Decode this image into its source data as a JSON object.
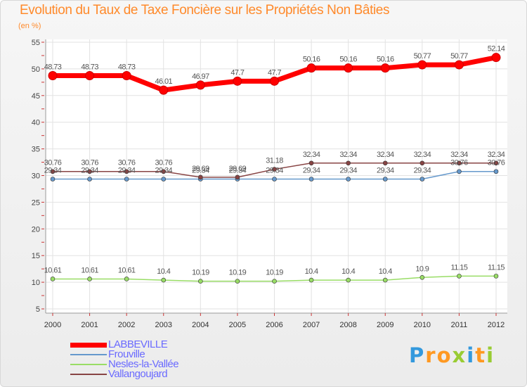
{
  "chart_data": {
    "type": "line",
    "title": "Evolution du Taux de Taxe Foncière sur les Propriétés Non Bâties",
    "subtitle": "(en %)",
    "xlabel": "",
    "ylabel": "(en %)",
    "ylim": [
      5,
      55
    ],
    "yticks": [
      "5",
      "10",
      "15",
      "20",
      "25",
      "30",
      "35",
      "40",
      "45",
      "50",
      "55"
    ],
    "categories": [
      "2000",
      "2001",
      "2002",
      "2003",
      "2004",
      "2005",
      "2006",
      "2007",
      "2008",
      "2009",
      "2010",
      "2011",
      "2012"
    ],
    "series": [
      {
        "name": "LABBEVILLE",
        "color": "#ff0000",
        "values": [
          48.73,
          48.73,
          48.73,
          46.01,
          46.97,
          47.7,
          47.7,
          50.16,
          50.16,
          50.16,
          50.77,
          50.77,
          52.14
        ],
        "labels": [
          "48.73",
          "48.73",
          "48.73",
          "46.01",
          "46.97",
          "47.7",
          "47.7",
          "50.16",
          "50.16",
          "50.16",
          "50.77",
          "50.77",
          "52.14"
        ]
      },
      {
        "name": "Frouville",
        "color": "#6699cc",
        "values": [
          29.34,
          29.34,
          29.34,
          29.34,
          29.34,
          29.34,
          29.34,
          29.34,
          29.34,
          29.34,
          29.34,
          30.76,
          30.76
        ],
        "labels": [
          "29.34",
          "29.34",
          "29.34",
          "29.34",
          "29.34",
          "29.34",
          "29.34",
          "29.34",
          "29.34",
          "29.34",
          "29.34",
          "30.76",
          "30.76"
        ]
      },
      {
        "name": "Nesles-la-Vallée",
        "color": "#99dd66",
        "values": [
          10.61,
          10.61,
          10.61,
          10.4,
          10.19,
          10.19,
          10.19,
          10.4,
          10.4,
          10.4,
          10.9,
          11.15,
          11.15
        ],
        "labels": [
          "10.61",
          "10.61",
          "10.61",
          "10.4",
          "10.19",
          "10.19",
          "10.19",
          "10.4",
          "10.4",
          "10.4",
          "10.9",
          "11.15",
          "11.15"
        ]
      },
      {
        "name": "Vallangoujard",
        "color": "#884444",
        "values": [
          30.76,
          30.76,
          30.76,
          30.76,
          29.69,
          29.69,
          31.18,
          32.34,
          32.34,
          32.34,
          32.34,
          32.34,
          32.34
        ],
        "labels": [
          "30.76",
          "30.76",
          "30.76",
          "30.76",
          "29.69",
          "29.69",
          "31.18",
          "32.34",
          "32.34",
          "32.34",
          "32.34",
          "32.34",
          "32.34"
        ]
      }
    ],
    "legend_position": "bottom-left"
  },
  "logo": {
    "letters": [
      "P",
      "r",
      "o",
      "x",
      "i",
      "t",
      "i"
    ],
    "colors": [
      "#3399dd",
      "#ff9922",
      "#ff9922",
      "#99cc33",
      "#3399dd",
      "#ff9922",
      "#99cc33"
    ]
  }
}
